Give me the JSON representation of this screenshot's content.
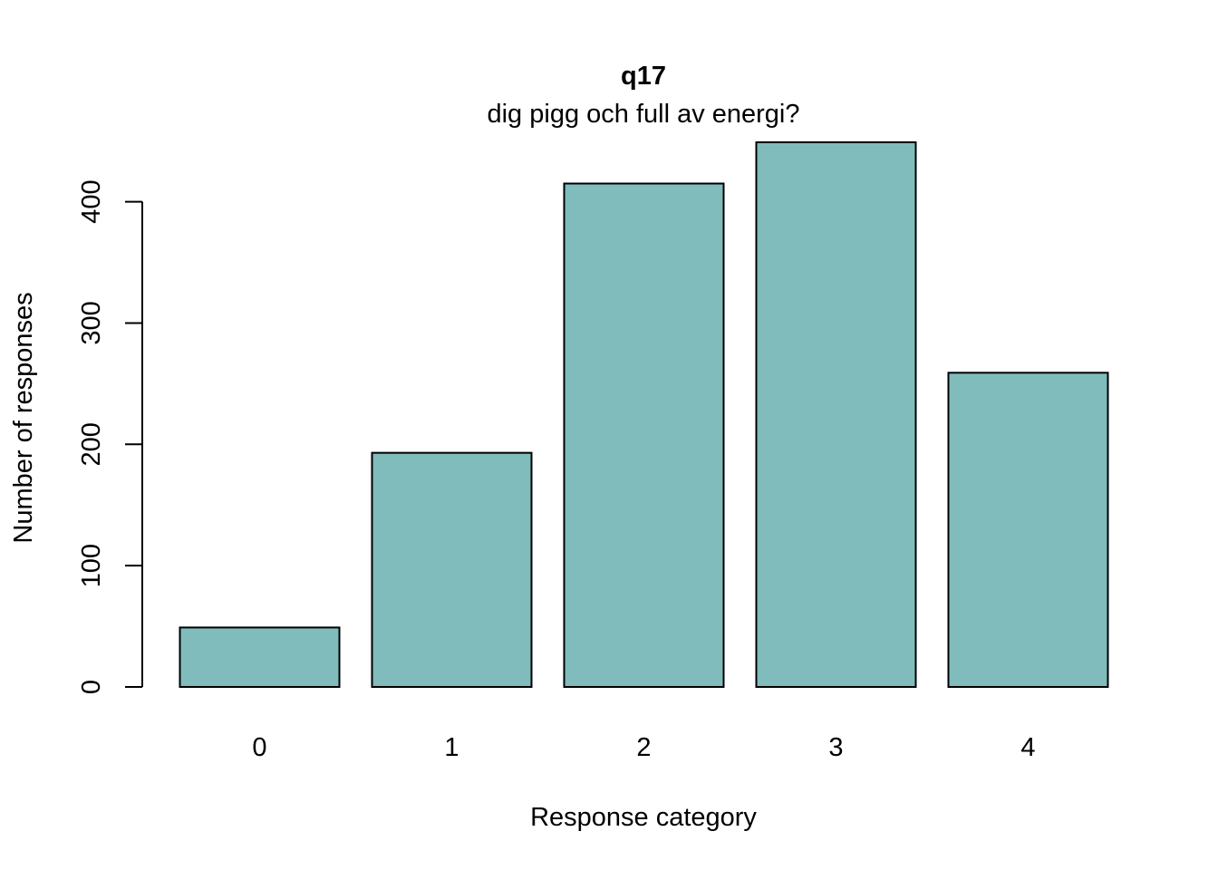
{
  "chart_data": {
    "type": "bar",
    "title": "q17",
    "subtitle": "dig pigg och full av energi?",
    "xlabel": "Response category",
    "ylabel": "Number of responses",
    "categories": [
      "0",
      "1",
      "2",
      "3",
      "4"
    ],
    "values": [
      49,
      193,
      415,
      449,
      259
    ],
    "yticks": [
      0,
      100,
      200,
      300,
      400
    ],
    "ylim": [
      0,
      449
    ],
    "bar_color": "#80bcbc",
    "grid": false,
    "legend": "none"
  }
}
